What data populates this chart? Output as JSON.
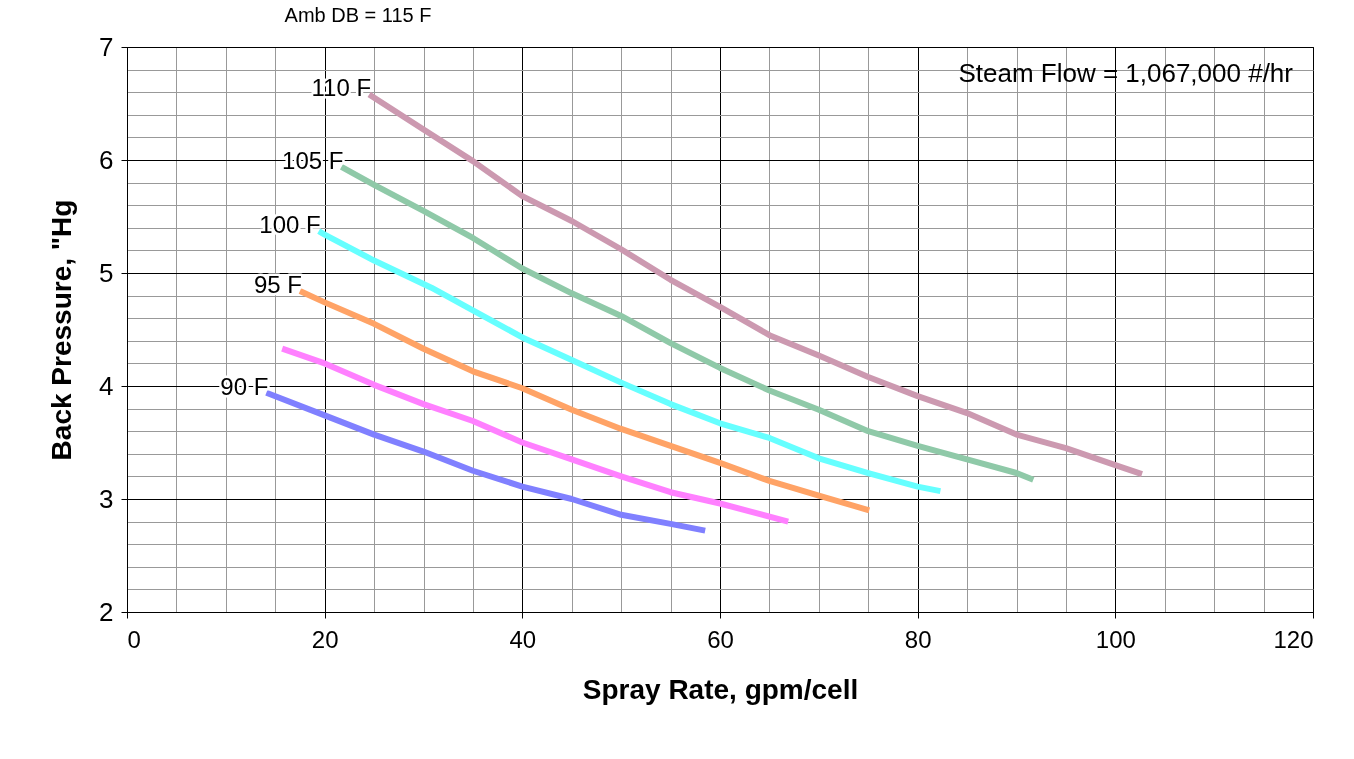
{
  "chart_data": {
    "type": "line",
    "title": "Amb DB = 115 F",
    "xlabel": "Spray Rate, gpm/cell",
    "ylabel": "Back Pressure, \"Hg",
    "annotations": [
      "Steam Flow = 1,067,000 #/hr"
    ],
    "xlim": [
      0,
      120
    ],
    "ylim": [
      2,
      7
    ],
    "xticks": [
      0,
      {
        "value": 5,
        "label": null
      },
      {
        "value": 10,
        "label": null
      },
      {
        "value": 15,
        "label": null
      },
      20,
      {
        "value": 25,
        "label": null
      },
      {
        "value": 30,
        "label": null
      },
      {
        "value": 35,
        "label": null
      },
      40,
      {
        "value": 45,
        "label": null
      },
      {
        "value": 50,
        "label": null
      },
      {
        "value": 55,
        "label": null
      },
      60,
      {
        "value": 65,
        "label": null
      },
      {
        "value": 70,
        "label": null
      },
      {
        "value": 75,
        "label": null
      },
      80,
      {
        "value": 85,
        "label": null
      },
      {
        "value": 90,
        "label": null
      },
      {
        "value": 95,
        "label": null
      },
      100,
      {
        "value": 105,
        "label": null
      },
      {
        "value": 110,
        "label": null
      },
      {
        "value": 115,
        "label": null
      },
      120
    ],
    "yticks": [
      2,
      {
        "value": 2.2,
        "label": null
      },
      {
        "value": 2.4,
        "label": null
      },
      {
        "value": 2.6,
        "label": null
      },
      {
        "value": 2.8,
        "label": null
      },
      3,
      {
        "value": 3.2,
        "label": null
      },
      {
        "value": 3.4,
        "label": null
      },
      {
        "value": 3.6,
        "label": null
      },
      {
        "value": 3.8,
        "label": null
      },
      4,
      {
        "value": 4.2,
        "label": null
      },
      {
        "value": 4.4,
        "label": null
      },
      {
        "value": 4.6,
        "label": null
      },
      {
        "value": 4.8,
        "label": null
      },
      5,
      {
        "value": 5.2,
        "label": null
      },
      {
        "value": 5.4,
        "label": null
      },
      {
        "value": 5.6,
        "label": null
      },
      {
        "value": 5.8,
        "label": null
      },
      6,
      {
        "value": 6.2,
        "label": null
      },
      {
        "value": 6.4,
        "label": null
      },
      {
        "value": 6.6,
        "label": null
      },
      {
        "value": 6.8,
        "label": null
      },
      7
    ],
    "grid": true,
    "legend": false,
    "marker": "none",
    "line_style": "solid",
    "series": [
      {
        "name": "90 F",
        "color": "#8080ff",
        "x": [
          14.1,
          20,
          25,
          30,
          35,
          40,
          45,
          50,
          55,
          58.5
        ],
        "values": [
          3.94,
          3.74,
          3.57,
          3.42,
          3.25,
          3.11,
          3.0,
          2.86,
          2.78,
          2.72
        ]
      },
      {
        "color": "#ff80ff",
        "x": [
          15.7,
          20,
          25,
          30,
          35,
          40,
          45,
          50,
          55,
          60,
          66.9
        ],
        "values": [
          4.33,
          4.2,
          4.01,
          3.84,
          3.69,
          3.5,
          3.35,
          3.2,
          3.06,
          2.96,
          2.8
        ]
      },
      {
        "name": "95 F",
        "color": "#ffa366",
        "x": [
          17.5,
          20,
          25,
          30,
          35,
          40,
          45,
          50,
          55,
          60,
          65,
          70,
          75.1
        ],
        "values": [
          4.84,
          4.74,
          4.55,
          4.33,
          4.13,
          3.98,
          3.79,
          3.62,
          3.47,
          3.32,
          3.16,
          3.03,
          2.9
        ]
      },
      {
        "name": "100 F",
        "color": "#66ffff",
        "x": [
          19.4,
          20,
          25,
          30.8,
          35,
          40,
          45,
          50,
          55,
          60,
          65,
          70,
          75,
          80,
          82.3
        ],
        "values": [
          5.37,
          5.34,
          5.11,
          4.87,
          4.67,
          4.43,
          4.23,
          4.03,
          3.84,
          3.67,
          3.54,
          3.36,
          3.23,
          3.11,
          3.07
        ]
      },
      {
        "name": "105 F",
        "color": "#8fc9a8",
        "x": [
          21.7,
          25,
          30,
          35,
          40,
          45,
          50,
          55,
          60,
          65,
          70,
          75,
          80,
          85,
          90,
          91.7
        ],
        "values": [
          5.94,
          5.78,
          5.55,
          5.31,
          5.04,
          4.82,
          4.62,
          4.38,
          4.16,
          3.96,
          3.79,
          3.6,
          3.47,
          3.35,
          3.23,
          3.17
        ]
      },
      {
        "name": "110 F",
        "color": "#cc99b0",
        "x": [
          24.5,
          30,
          35,
          40,
          45,
          50,
          55,
          60,
          65,
          70,
          75,
          80,
          85,
          90,
          95,
          100,
          102.7
        ],
        "values": [
          6.58,
          6.27,
          5.99,
          5.68,
          5.46,
          5.21,
          4.94,
          4.7,
          4.45,
          4.27,
          4.08,
          3.91,
          3.76,
          3.57,
          3.45,
          3.3,
          3.22
        ]
      }
    ]
  }
}
